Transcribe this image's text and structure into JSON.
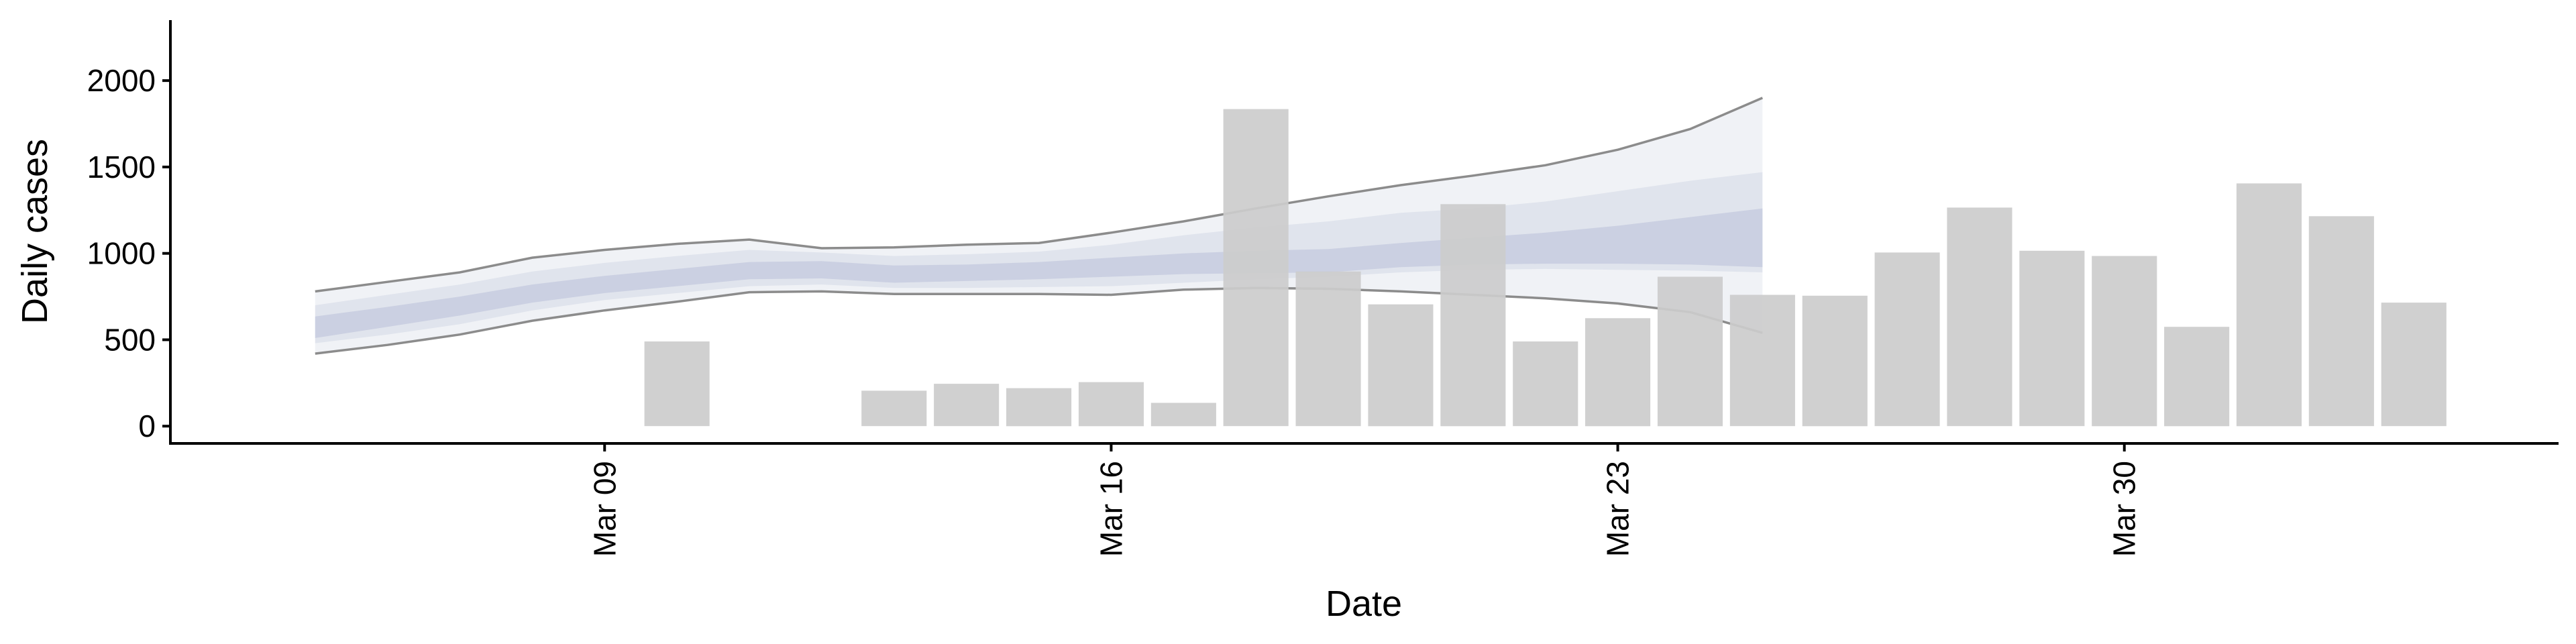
{
  "chart_data": {
    "type": "bar",
    "title": "",
    "xlabel": "Date",
    "ylabel": "Daily cases",
    "ylim": [
      -100,
      2350
    ],
    "xlim": [
      "2020-03-03",
      "2020-04-05"
    ],
    "grid": false,
    "x_ticks": [
      {
        "date": "2020-03-09",
        "label": "Mar 09"
      },
      {
        "date": "2020-03-16",
        "label": "Mar 16"
      },
      {
        "date": "2020-03-23",
        "label": "Mar 23"
      },
      {
        "date": "2020-03-30",
        "label": "Mar 30"
      }
    ],
    "y_ticks": [
      {
        "value": 0,
        "label": "0"
      },
      {
        "value": 500,
        "label": "500"
      },
      {
        "value": 1000,
        "label": "1000"
      },
      {
        "value": 1500,
        "label": "1500"
      },
      {
        "value": 2000,
        "label": "2000"
      }
    ],
    "bars": {
      "color": "#cccccc",
      "dates": [
        "2020-03-10",
        "2020-03-12",
        "2020-03-13",
        "2020-03-14",
        "2020-03-15",
        "2020-03-16",
        "2020-03-17",
        "2020-03-18",
        "2020-03-19",
        "2020-03-20",
        "2020-03-21",
        "2020-03-22",
        "2020-03-23",
        "2020-03-24",
        "2020-03-25",
        "2020-03-26",
        "2020-03-27",
        "2020-03-28",
        "2020-03-29",
        "2020-03-30",
        "2020-03-31",
        "2020-04-01",
        "2020-04-02",
        "2020-04-03"
      ],
      "values": [
        490,
        0,
        205,
        245,
        220,
        255,
        135,
        1835,
        895,
        705,
        1285,
        490,
        625,
        865,
        760,
        755,
        1005,
        1265,
        1015,
        985,
        575,
        1405,
        1215,
        715
      ]
    },
    "estimate": {
      "band_color": "#c4cadd",
      "outline_color": "#808080",
      "dates": [
        "2020-03-05",
        "2020-03-06",
        "2020-03-07",
        "2020-03-08",
        "2020-03-09",
        "2020-03-10",
        "2020-03-11",
        "2020-03-12",
        "2020-03-13",
        "2020-03-14",
        "2020-03-15",
        "2020-03-16",
        "2020-03-17",
        "2020-03-18",
        "2020-03-19",
        "2020-03-20",
        "2020-03-21",
        "2020-03-22",
        "2020-03-23",
        "2020-03-24",
        "2020-03-25"
      ],
      "outer_upper": [
        780,
        835,
        890,
        975,
        1020,
        1055,
        1080,
        1030,
        1035,
        1050,
        1060,
        1120,
        1185,
        1260,
        1330,
        1395,
        1450,
        1510,
        1600,
        1720,
        1900
      ],
      "outer_lower": [
        420,
        470,
        530,
        610,
        670,
        720,
        775,
        780,
        765,
        765,
        765,
        760,
        790,
        800,
        795,
        780,
        760,
        740,
        710,
        660,
        540
      ],
      "inner_upper": [
        635,
        690,
        750,
        820,
        870,
        910,
        950,
        955,
        930,
        935,
        950,
        975,
        1000,
        1015,
        1025,
        1060,
        1090,
        1120,
        1160,
        1210,
        1260
      ],
      "inner_lower": [
        510,
        575,
        640,
        715,
        770,
        810,
        850,
        855,
        830,
        840,
        850,
        865,
        880,
        885,
        890,
        920,
        935,
        940,
        940,
        935,
        920
      ],
      "mid_upper": [
        700,
        760,
        820,
        895,
        945,
        985,
        1020,
        1005,
        985,
        995,
        1010,
        1050,
        1105,
        1150,
        1185,
        1235,
        1260,
        1300,
        1360,
        1420,
        1470
      ],
      "mid_lower": [
        480,
        530,
        590,
        670,
        730,
        770,
        810,
        820,
        800,
        800,
        805,
        810,
        830,
        850,
        865,
        890,
        905,
        910,
        905,
        900,
        890
      ]
    }
  }
}
